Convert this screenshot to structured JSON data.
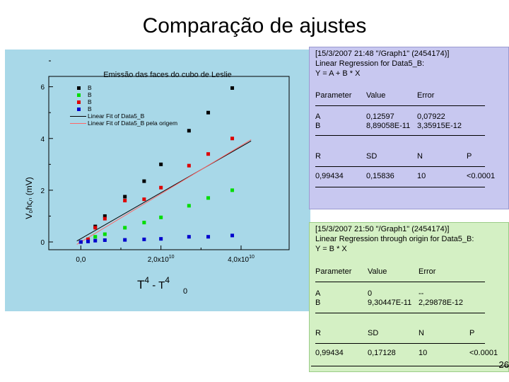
{
  "slide": {
    "title": "Comparação de ajustes",
    "page_number": "26"
  },
  "chart_data": {
    "type": "scatter",
    "title": "Emissão das faces do cubo de Leslie",
    "xlabel_main": "T",
    "xlabel_sub": "0",
    "xlabel_sup1": "4",
    "xlabel_sup2": "4",
    "xlabel_minus": " - T",
    "ylabel": "V₀ɦςₙ (mV)",
    "xlim": [
      -8000000000.0,
      52000000000.0
    ],
    "ylim": [
      -0.3,
      6.4
    ],
    "x_ticks": [
      0,
      20000000000.0,
      40000000000.0
    ],
    "x_tick_labels": [
      {
        "base": "0,0",
        "exp": ""
      },
      {
        "base": "2,0x10",
        "exp": "10"
      },
      {
        "base": "4,0x10",
        "exp": "10"
      }
    ],
    "y_ticks": [
      0,
      2,
      4,
      6
    ],
    "y_tick_labels": [
      "0",
      "2",
      "4",
      "6"
    ],
    "legend": [
      {
        "name": "B",
        "color": "#000000",
        "kind": "marker"
      },
      {
        "name": "B",
        "color": "#00dd00",
        "kind": "marker"
      },
      {
        "name": "B",
        "color": "#dd0000",
        "kind": "marker"
      },
      {
        "name": "B",
        "color": "#0000cc",
        "kind": "marker"
      },
      {
        "name": "Linear Fit of Data5_B",
        "color": "#000000",
        "kind": "line"
      },
      {
        "name": "Linear Fit of Data5_B pela origem",
        "color": "#ff6666",
        "kind": "line"
      }
    ],
    "legend_position": "top-left",
    "series": [
      {
        "name": "B",
        "color": "#000000",
        "x": [
          0,
          1800000000.0,
          3600000000.0,
          6000000000.0,
          11000000000.0,
          15800000000.0,
          20000000000.0,
          27000000000.0,
          31800000000.0,
          37800000000.0
        ],
        "y": [
          0,
          0.1,
          0.6,
          1.0,
          1.75,
          2.35,
          3.0,
          4.3,
          5.0,
          5.95
        ]
      },
      {
        "name": "B",
        "color": "#00dd00",
        "x": [
          1800000000.0,
          3600000000.0,
          6000000000.0,
          11000000000.0,
          15800000000.0,
          20000000000.0,
          27000000000.0,
          31800000000.0,
          37800000000.0
        ],
        "y": [
          0.1,
          0.2,
          0.3,
          0.55,
          0.75,
          0.95,
          1.4,
          1.7,
          2.0
        ]
      },
      {
        "name": "B",
        "color": "#dd0000",
        "x": [
          0,
          1800000000.0,
          3600000000.0,
          6000000000.0,
          11000000000.0,
          15800000000.0,
          20000000000.0,
          27000000000.0,
          31800000000.0,
          37800000000.0
        ],
        "y": [
          0,
          0.1,
          0.55,
          0.9,
          1.6,
          1.65,
          2.1,
          2.95,
          3.4,
          4.0
        ]
      },
      {
        "name": "B",
        "color": "#0000cc",
        "x": [
          0,
          1800000000.0,
          3600000000.0,
          6000000000.0,
          11000000000.0,
          15800000000.0,
          20000000000.0,
          27000000000.0,
          31800000000.0,
          37800000000.0
        ],
        "y": [
          0,
          0.02,
          0.05,
          0.07,
          0.08,
          0.1,
          0.12,
          0.2,
          0.2,
          0.25
        ]
      }
    ],
    "fit_lines": [
      {
        "name": "Linear Fit of Data5_B",
        "color": "#000000",
        "intercept": 0.12597,
        "slope": 8.89058e-11
      },
      {
        "name": "Linear Fit of Data5_B pela origem",
        "color": "#ff6666",
        "intercept": 0,
        "slope": 9.30447e-11
      }
    ],
    "fit_range": [
      -1000000000.0,
      42500000000.0
    ]
  },
  "panel1": {
    "lines": [
      "[15/3/2007 21:48 \"/Graph1\" (2454174)]",
      "Linear Regression for Data5_B:",
      "Y = A + B * X"
    ],
    "header": {
      "c1": "Parameter",
      "c2": "Value",
      "c3": "Error"
    },
    "rowA": {
      "c1": "A",
      "c2": "0,12597",
      "c3": "0,07922"
    },
    "rowB": {
      "c1": "B",
      "c2": "8,89058E-11",
      "c3": "3,35915E-12"
    },
    "stat_header": {
      "c1": "R",
      "c2": "SD",
      "c3": "N",
      "c4": "P"
    },
    "stat_row": {
      "c1": "0,99434",
      "c2": "0,15836",
      "c3": "10",
      "c4": "<0.0001"
    }
  },
  "panel2": {
    "lines": [
      "[15/3/2007 21:50 \"/Graph1\" (2454174)]",
      "Linear Regression through origin for Data5_B:",
      "Y = B * X"
    ],
    "header": {
      "c1": "Parameter",
      "c2": "Value",
      "c3": "Error"
    },
    "rowA": {
      "c1": "A",
      "c2": "0",
      "c3": "--"
    },
    "rowB": {
      "c1": "B",
      "c2": "9,30447E-11",
      "c3": "2,29878E-12"
    },
    "stat_header": {
      "c1": "R",
      "c2": "SD",
      "c3": "N",
      "c4": "P"
    },
    "stat_row": {
      "c1": "0,99434",
      "c2": "0,17128",
      "c3": "10",
      "c4": "<0.0001"
    }
  }
}
